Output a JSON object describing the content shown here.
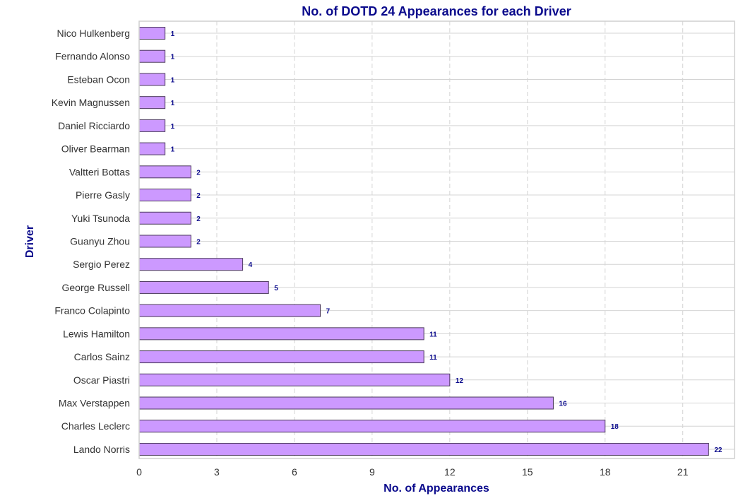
{
  "chart_data": {
    "type": "bar",
    "orientation": "horizontal",
    "title": "No. of DOTD 24 Appearances for each Driver",
    "xlabel": "No. of Appearances",
    "ylabel": "Driver",
    "xlim": [
      0,
      23
    ],
    "xticks": [
      0,
      3,
      6,
      9,
      12,
      15,
      18,
      21
    ],
    "grid": true,
    "categories": [
      "Nico Hulkenberg",
      "Fernando Alonso",
      "Esteban Ocon",
      "Kevin Magnussen",
      "Daniel Ricciardo",
      "Oliver Bearman",
      "Valtteri Bottas",
      "Pierre Gasly",
      "Yuki Tsunoda",
      "Guanyu Zhou",
      "Sergio Perez",
      "George Russell",
      "Franco Colapinto",
      "Lewis Hamilton",
      "Carlos Sainz",
      "Oscar Piastri",
      "Max Verstappen",
      "Charles Leclerc",
      "Lando Norris"
    ],
    "values": [
      1,
      1,
      1,
      1,
      1,
      1,
      2,
      2,
      2,
      2,
      4,
      5,
      7,
      11,
      11,
      12,
      16,
      18,
      22
    ],
    "colors": {
      "bar_fill": "#cc99ff",
      "bar_edge": "#4b3a5c",
      "title": "#0a0a8c",
      "label": "#0a0a8c",
      "grid": "#d4d4d4",
      "axes_frame": "#cfcfcf"
    }
  }
}
